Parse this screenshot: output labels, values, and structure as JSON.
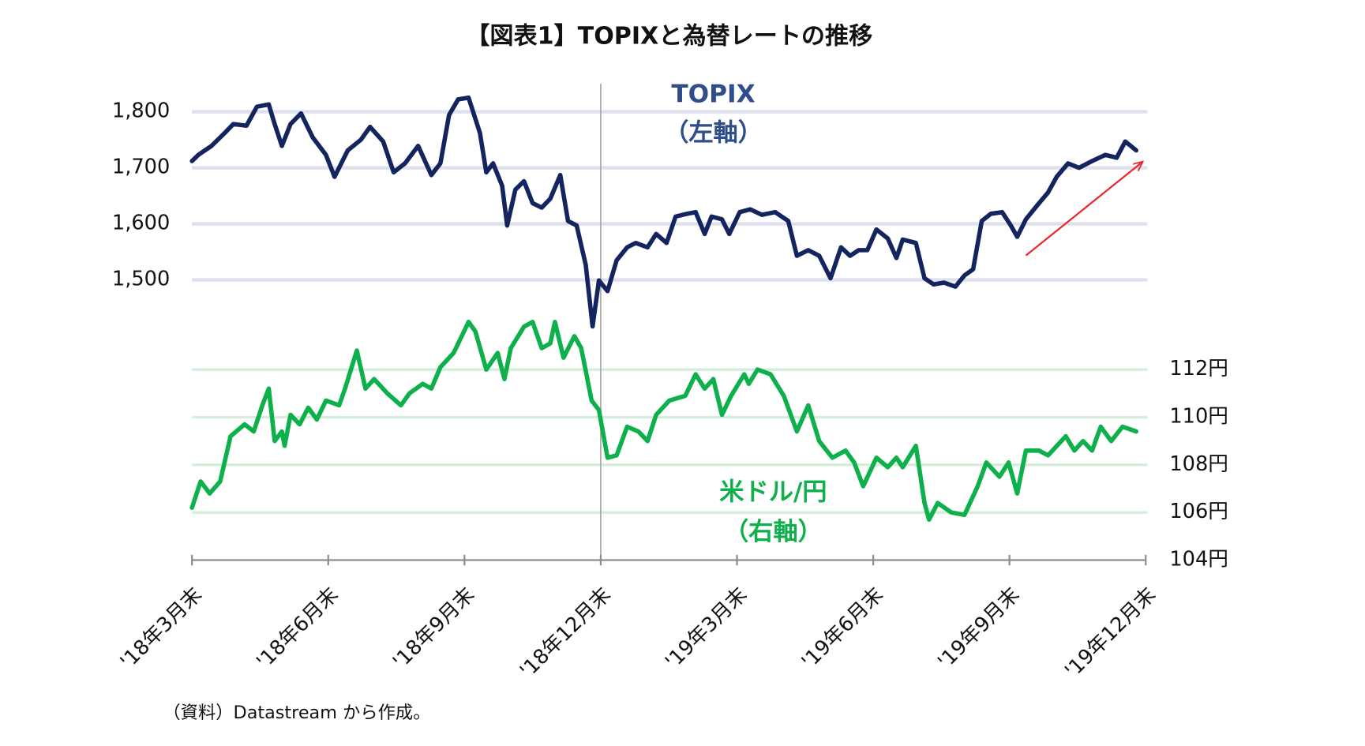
{
  "chart_data": {
    "type": "line",
    "title": "【図表1】TOPIXと為替レートの推移",
    "source": "（資料）Datastream から作成。",
    "annotations": [
      "（左軸）",
      "（右軸）"
    ],
    "xlim": [
      0,
      21
    ],
    "xticks": [
      {
        "value": 0,
        "label": "'18年3月末"
      },
      {
        "value": 3,
        "label": "'18年6月末"
      },
      {
        "value": 6,
        "label": "'18年9月末"
      },
      {
        "value": 9,
        "label": "'18年12月末"
      },
      {
        "value": 12,
        "label": "'19年3月末"
      },
      {
        "value": 15,
        "label": "'19年6月末"
      },
      {
        "value": 18,
        "label": "'19年9月末"
      },
      {
        "value": 21,
        "label": "'19年12月末"
      }
    ],
    "ylim": [
      1000,
      1850
    ],
    "yticks": [
      {
        "value": 1500,
        "label": "1,500"
      },
      {
        "value": 1600,
        "label": "1,600"
      },
      {
        "value": 1700,
        "label": "1,700"
      },
      {
        "value": 1800,
        "label": "1,800"
      }
    ],
    "y2lim": [
      104,
      124
    ],
    "y2ticks": [
      {
        "value": 104,
        "label": "104円"
      },
      {
        "value": 106,
        "label": "106円"
      },
      {
        "value": 108,
        "label": "108円"
      },
      {
        "value": 110,
        "label": "110円"
      },
      {
        "value": 112,
        "label": "112円"
      }
    ],
    "grid": true,
    "series": [
      {
        "name": "TOPIX",
        "color": "#14245f",
        "axis": "y",
        "x": [
          0,
          0.14,
          0.43,
          0.72,
          0.91,
          1.2,
          1.43,
          1.69,
          1.82,
          1.98,
          2.17,
          2.4,
          2.66,
          2.95,
          3.14,
          3.43,
          3.72,
          3.92,
          4.21,
          4.44,
          4.69,
          4.98,
          5.27,
          5.47,
          5.66,
          5.86,
          6.09,
          6.34,
          6.48,
          6.63,
          6.83,
          6.94,
          7.12,
          7.31,
          7.5,
          7.7,
          7.89,
          8.11,
          8.28,
          8.47,
          8.67,
          8.82,
          8.96,
          9.15,
          9.35,
          9.58,
          9.77,
          10.03,
          10.22,
          10.45,
          10.65,
          10.9,
          11.09,
          11.29,
          11.44,
          11.67,
          11.83,
          12.06,
          12.29,
          12.55,
          12.84,
          13.13,
          13.32,
          13.57,
          13.81,
          14.06,
          14.29,
          14.49,
          14.68,
          14.87,
          15.07,
          15.32,
          15.51,
          15.65,
          15.94,
          16.13,
          16.33,
          16.56,
          16.81,
          17.01,
          17.2,
          17.39,
          17.59,
          17.84,
          18.03,
          18.17,
          18.36,
          18.62,
          18.85,
          19.04,
          19.29,
          19.53,
          19.82,
          20.11,
          20.36,
          20.55,
          20.79
        ],
        "values": [
          1712,
          1723,
          1739,
          1762,
          1778,
          1775,
          1809,
          1813,
          1778,
          1739,
          1778,
          1797,
          1754,
          1723,
          1684,
          1731,
          1750,
          1773,
          1747,
          1692,
          1708,
          1739,
          1687,
          1708,
          1794,
          1822,
          1825,
          1762,
          1692,
          1708,
          1668,
          1597,
          1661,
          1676,
          1637,
          1629,
          1645,
          1687,
          1605,
          1597,
          1527,
          1417,
          1499,
          1480,
          1535,
          1558,
          1566,
          1558,
          1582,
          1566,
          1613,
          1618,
          1621,
          1582,
          1613,
          1608,
          1582,
          1621,
          1626,
          1616,
          1621,
          1605,
          1543,
          1553,
          1543,
          1503,
          1558,
          1543,
          1553,
          1553,
          1590,
          1574,
          1539,
          1572,
          1566,
          1503,
          1492,
          1495,
          1488,
          1508,
          1519,
          1605,
          1618,
          1621,
          1597,
          1577,
          1608,
          1634,
          1656,
          1684,
          1708,
          1700,
          1712,
          1723,
          1718,
          1747,
          1731
        ]
      },
      {
        "name": "米ドル/円",
        "color": "#0db04b",
        "axis": "y2",
        "x": [
          0,
          0.19,
          0.39,
          0.62,
          0.85,
          1.16,
          1.36,
          1.55,
          1.69,
          1.82,
          1.98,
          2.04,
          2.17,
          2.37,
          2.56,
          2.75,
          2.95,
          3.24,
          3.37,
          3.63,
          3.82,
          4.01,
          4.3,
          4.6,
          4.79,
          5.08,
          5.27,
          5.47,
          5.76,
          6.09,
          6.24,
          6.48,
          6.73,
          6.88,
          7.02,
          7.31,
          7.5,
          7.7,
          7.89,
          7.99,
          8.18,
          8.42,
          8.57,
          8.8,
          8.96,
          9.15,
          9.35,
          9.58,
          9.83,
          10.03,
          10.22,
          10.51,
          10.86,
          11.09,
          11.29,
          11.48,
          11.67,
          11.87,
          12.16,
          12.26,
          12.45,
          12.74,
          13.03,
          13.32,
          13.57,
          13.81,
          14.1,
          14.39,
          14.58,
          14.78,
          15.07,
          15.32,
          15.51,
          15.65,
          15.94,
          16.13,
          16.23,
          16.42,
          16.72,
          17.01,
          17.3,
          17.49,
          17.78,
          17.98,
          18.17,
          18.36,
          18.65,
          18.85,
          19.24,
          19.43,
          19.62,
          19.82,
          20.01,
          20.24,
          20.49,
          20.79
        ],
        "values": [
          106.2,
          107.3,
          106.8,
          107.3,
          109.2,
          109.7,
          109.4,
          110.5,
          111.2,
          109.0,
          109.4,
          108.8,
          110.1,
          109.7,
          110.4,
          109.9,
          110.7,
          110.5,
          111.2,
          112.8,
          111.2,
          111.6,
          111.0,
          110.5,
          111.0,
          111.4,
          111.2,
          112.1,
          112.7,
          114.0,
          113.6,
          112.0,
          112.7,
          111.6,
          112.9,
          113.8,
          114.0,
          112.9,
          113.1,
          114.0,
          112.5,
          113.4,
          112.9,
          110.7,
          110.3,
          108.3,
          108.4,
          109.6,
          109.4,
          109.0,
          110.1,
          110.7,
          110.9,
          111.8,
          111.2,
          111.6,
          110.1,
          110.9,
          111.8,
          111.4,
          112.0,
          111.8,
          110.9,
          109.4,
          110.5,
          109.0,
          108.3,
          108.6,
          108.1,
          107.1,
          108.3,
          107.9,
          108.3,
          107.9,
          108.8,
          106.4,
          105.7,
          106.4,
          106.0,
          105.9,
          107.1,
          108.1,
          107.5,
          108.1,
          106.8,
          108.6,
          108.6,
          108.4,
          109.2,
          108.6,
          109.0,
          108.6,
          109.6,
          109.0,
          109.6,
          109.4
        ]
      }
    ]
  }
}
